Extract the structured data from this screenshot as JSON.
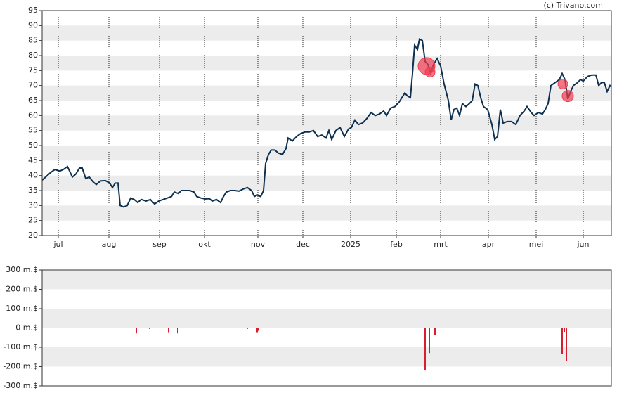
{
  "chart_data": [
    {
      "type": "line",
      "credit": "(c) Trivano.com",
      "xlim": [
        0,
        810
      ],
      "xticks": [
        {
          "value": 23,
          "label": "jul"
        },
        {
          "value": 95,
          "label": "aug"
        },
        {
          "value": 167,
          "label": "sep"
        },
        {
          "value": 231,
          "label": "okt"
        },
        {
          "value": 307,
          "label": "nov"
        },
        {
          "value": 371,
          "label": "dec"
        },
        {
          "value": 439,
          "label": "2025"
        },
        {
          "value": 504,
          "label": "feb"
        },
        {
          "value": 567,
          "label": "mrt"
        },
        {
          "value": 635,
          "label": "apr"
        },
        {
          "value": 703,
          "label": "mei"
        },
        {
          "value": 770,
          "label": "jun"
        }
      ],
      "ylim": [
        20,
        95
      ],
      "yticks": [
        20,
        25,
        30,
        35,
        40,
        45,
        50,
        55,
        60,
        65,
        70,
        75,
        80,
        85,
        90,
        95
      ],
      "series": [
        {
          "color": "#0d3050",
          "x": [
            0,
            5,
            12,
            18,
            25,
            30,
            36,
            43,
            48,
            53,
            57,
            62,
            67,
            72,
            77,
            83,
            90,
            96,
            100,
            104,
            108,
            111,
            116,
            121,
            126,
            131,
            136,
            141,
            148,
            154,
            160,
            166,
            172,
            178,
            184,
            188,
            194,
            198,
            204,
            210,
            216,
            220,
            226,
            232,
            238,
            242,
            248,
            254,
            258,
            262,
            268,
            274,
            280,
            286,
            292,
            298,
            302,
            306,
            311,
            315,
            318,
            322,
            326,
            331,
            336,
            342,
            347,
            350,
            356,
            362,
            368,
            374,
            380,
            386,
            392,
            398,
            404,
            408,
            412,
            418,
            424,
            430,
            436,
            440,
            445,
            450,
            456,
            462,
            468,
            474,
            480,
            486,
            490,
            496,
            502,
            508,
            512,
            516,
            520,
            524,
            527,
            530,
            534,
            537,
            541,
            545,
            549,
            553,
            557,
            562,
            567,
            572,
            578,
            582,
            586,
            590,
            594,
            598,
            603,
            608,
            612,
            616,
            620,
            624,
            628,
            634,
            640,
            644,
            648,
            652,
            656,
            662,
            668,
            674,
            680,
            686,
            690,
            696,
            700,
            706,
            712,
            716,
            720,
            724,
            730,
            736,
            740,
            744,
            748,
            752,
            756,
            762,
            766,
            770,
            776,
            782,
            788,
            792,
            796,
            800,
            804,
            808,
            810
          ],
          "values": [
            38.5,
            39.5,
            41,
            42,
            41.5,
            42,
            43,
            39.5,
            40.5,
            42.5,
            42.5,
            39,
            39.5,
            38,
            37,
            38.2,
            38.3,
            37.5,
            36,
            37.5,
            37.5,
            30,
            29.5,
            30,
            32.5,
            32,
            31,
            32,
            31.5,
            32,
            30.5,
            31.5,
            32,
            32.5,
            33,
            34.5,
            34,
            35,
            35,
            35,
            34.5,
            33,
            32.5,
            32.2,
            32.3,
            31.5,
            32,
            31,
            33,
            34.5,
            35,
            35,
            34.8,
            35.5,
            36,
            35,
            33,
            33.5,
            33,
            35,
            44,
            47,
            48.5,
            48.5,
            47.5,
            47,
            49,
            52.5,
            51.5,
            53,
            54,
            54.5,
            54.5,
            55,
            53,
            53.5,
            52.5,
            55,
            52,
            55,
            56,
            53,
            55.5,
            56,
            58.5,
            57,
            57.5,
            59,
            61,
            60,
            60.5,
            61.5,
            60,
            62.5,
            63,
            64.5,
            66,
            67.5,
            66.5,
            66,
            74,
            83.5,
            82,
            85.5,
            85,
            78,
            77,
            74,
            77,
            79,
            76.5,
            70.5,
            65,
            58.5,
            62,
            62.5,
            60,
            64,
            63,
            64,
            65,
            70.5,
            70,
            66,
            63,
            62,
            57,
            52,
            53,
            62,
            57.5,
            58,
            58,
            57,
            60,
            61.5,
            63,
            61,
            60,
            61,
            60.5,
            62,
            64,
            70,
            71,
            72,
            74,
            72,
            65.5,
            68,
            70,
            71,
            72,
            71.5,
            73,
            73.5,
            73.5,
            70,
            71,
            71,
            68,
            70,
            69.5
          ]
        }
      ],
      "markers": {
        "color": "#f03c50",
        "x": [
          547,
          552,
          741,
          748
        ],
        "values": [
          76.5,
          74.5,
          70.5,
          66.5
        ],
        "sizes": [
          12,
          7,
          7,
          8
        ]
      }
    },
    {
      "type": "bar",
      "xlim": [
        0,
        810
      ],
      "ylim": [
        -300,
        300
      ],
      "yticks": [
        {
          "value": -300,
          "label": "-300 m.$"
        },
        {
          "value": -200,
          "label": "-200 m.$"
        },
        {
          "value": -100,
          "label": "-100 m.$"
        },
        {
          "value": 0,
          "label": "0 m.$"
        },
        {
          "value": 100,
          "label": "100 m.$"
        },
        {
          "value": 200,
          "label": "200 m.$"
        },
        {
          "value": 300,
          "label": "300 m.$"
        }
      ],
      "color": "#d81e2c",
      "x": [
        134,
        153,
        180,
        193,
        292,
        306,
        308,
        545,
        551,
        559,
        740,
        743,
        746
      ],
      "values": [
        -28,
        -5,
        -22,
        -28,
        -5,
        -22,
        -15,
        -220,
        -130,
        -35,
        -135,
        -20,
        -170
      ]
    }
  ]
}
